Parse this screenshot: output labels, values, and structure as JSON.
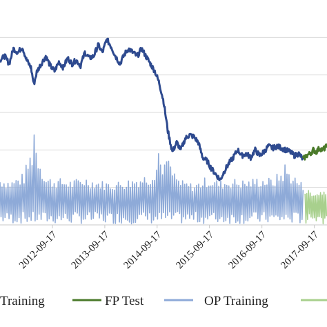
{
  "chart_data": {
    "type": "line",
    "title": "",
    "xlabel": "",
    "ylabel": "",
    "grid": {
      "horizontal": true,
      "vertical": false
    },
    "legend_position": "bottom",
    "x_ticks": [
      "2012-09-17",
      "2013-09-17",
      "2014-09-17",
      "2015-09-17",
      "2016-09-17",
      "2017-09-17"
    ],
    "x_range": [
      "2011-09-17",
      "2017-12-15"
    ],
    "ylim": [
      0,
      6
    ],
    "colors": {
      "fp_training": "#2e4a8f",
      "fp_test": "#4a7a2a",
      "op_training": "#8eaad8",
      "op_test": "#a8d08d"
    },
    "legend": [
      {
        "key": "fp_training",
        "label": "Training"
      },
      {
        "key": "fp_test",
        "label": "FP Test"
      },
      {
        "key": "op_training",
        "label": "OP Training"
      },
      {
        "key": "op_test",
        "label": ""
      }
    ],
    "series": [
      {
        "name": "Training",
        "key": "fp_training",
        "points": [
          [
            "2011-09-17",
            4.4
          ],
          [
            "2011-10-20",
            4.5
          ],
          [
            "2011-11-20",
            4.3
          ],
          [
            "2011-12-20",
            4.7
          ],
          [
            "2012-01-20",
            4.6
          ],
          [
            "2012-02-20",
            4.75
          ],
          [
            "2012-03-20",
            4.4
          ],
          [
            "2012-04-20",
            4.2
          ],
          [
            "2012-05-10",
            3.75
          ],
          [
            "2012-06-01",
            4.1
          ],
          [
            "2012-07-01",
            4.3
          ],
          [
            "2012-08-01",
            4.5
          ],
          [
            "2012-09-01",
            4.25
          ],
          [
            "2012-10-01",
            4.1
          ],
          [
            "2012-11-01",
            4.35
          ],
          [
            "2012-12-01",
            4.2
          ],
          [
            "2013-01-01",
            4.45
          ],
          [
            "2013-02-01",
            4.3
          ],
          [
            "2013-03-01",
            4.4
          ],
          [
            "2013-04-01",
            4.25
          ],
          [
            "2013-05-01",
            4.6
          ],
          [
            "2013-06-01",
            4.45
          ],
          [
            "2013-07-01",
            4.5
          ],
          [
            "2013-08-01",
            4.8
          ],
          [
            "2013-09-01",
            4.6
          ],
          [
            "2013-10-01",
            4.95
          ],
          [
            "2013-11-01",
            4.75
          ],
          [
            "2013-12-01",
            4.5
          ],
          [
            "2014-01-01",
            4.3
          ],
          [
            "2014-02-01",
            4.55
          ],
          [
            "2014-03-01",
            4.7
          ],
          [
            "2014-04-01",
            4.6
          ],
          [
            "2014-05-01",
            4.5
          ],
          [
            "2014-06-01",
            4.7
          ],
          [
            "2014-07-01",
            4.5
          ],
          [
            "2014-08-01",
            4.3
          ],
          [
            "2014-09-01",
            4.1
          ],
          [
            "2014-10-01",
            3.8
          ],
          [
            "2014-11-01",
            3.3
          ],
          [
            "2014-12-01",
            2.5
          ],
          [
            "2015-01-01",
            1.95
          ],
          [
            "2015-02-01",
            2.2
          ],
          [
            "2015-03-01",
            2.0
          ],
          [
            "2015-04-01",
            2.3
          ],
          [
            "2015-05-01",
            2.4
          ],
          [
            "2015-06-01",
            2.35
          ],
          [
            "2015-07-01",
            2.2
          ],
          [
            "2015-08-01",
            1.8
          ],
          [
            "2015-09-01",
            1.7
          ],
          [
            "2015-10-01",
            1.5
          ],
          [
            "2015-11-01",
            1.35
          ],
          [
            "2015-12-01",
            1.2
          ],
          [
            "2016-01-01",
            1.45
          ],
          [
            "2016-02-01",
            1.65
          ],
          [
            "2016-03-01",
            1.8
          ],
          [
            "2016-04-01",
            2.0
          ],
          [
            "2016-05-01",
            1.85
          ],
          [
            "2016-06-01",
            1.9
          ],
          [
            "2016-07-01",
            1.8
          ],
          [
            "2016-08-01",
            2.0
          ],
          [
            "2016-09-01",
            1.85
          ],
          [
            "2016-10-01",
            1.95
          ],
          [
            "2016-11-01",
            2.1
          ],
          [
            "2016-12-01",
            2.05
          ],
          [
            "2017-01-01",
            2.1
          ],
          [
            "2017-02-01",
            2.05
          ],
          [
            "2017-03-01",
            2.0
          ],
          [
            "2017-04-01",
            1.95
          ],
          [
            "2017-05-01",
            1.85
          ],
          [
            "2017-06-01",
            1.9
          ],
          [
            "2017-07-01",
            1.75
          ]
        ]
      },
      {
        "name": "FP Test",
        "key": "fp_test",
        "points": [
          [
            "2017-07-01",
            1.75
          ],
          [
            "2017-07-25",
            1.85
          ],
          [
            "2017-08-20",
            1.9
          ],
          [
            "2017-09-10",
            2.0
          ],
          [
            "2017-10-01",
            1.95
          ],
          [
            "2017-10-25",
            2.05
          ],
          [
            "2017-11-15",
            2.0
          ],
          [
            "2017-12-15",
            2.1
          ]
        ]
      },
      {
        "name": "OP Training",
        "key": "op_training",
        "start": "2011-09-17",
        "end": "2017-07-01",
        "baseline": 0.6,
        "peaks": [
          [
            "2011-09-17",
            1.3
          ],
          [
            "2011-12-01",
            1.2
          ],
          [
            "2012-03-01",
            1.4
          ],
          [
            "2012-05-15",
            2.4
          ],
          [
            "2012-08-01",
            1.3
          ],
          [
            "2012-11-01",
            1.25
          ],
          [
            "2013-02-01",
            1.2
          ],
          [
            "2013-05-01",
            1.3
          ],
          [
            "2013-08-01",
            1.2
          ],
          [
            "2013-11-01",
            1.15
          ],
          [
            "2014-02-01",
            1.2
          ],
          [
            "2014-05-01",
            1.3
          ],
          [
            "2014-08-01",
            1.4
          ],
          [
            "2014-10-01",
            1.9
          ],
          [
            "2014-12-01",
            1.7
          ],
          [
            "2015-03-01",
            1.2
          ],
          [
            "2015-06-01",
            1.1
          ],
          [
            "2015-09-01",
            1.3
          ],
          [
            "2015-12-01",
            1.2
          ],
          [
            "2016-03-01",
            1.25
          ],
          [
            "2016-06-01",
            1.2
          ],
          [
            "2016-09-01",
            1.3
          ],
          [
            "2016-12-01",
            1.25
          ],
          [
            "2017-03-01",
            1.6
          ],
          [
            "2017-07-01",
            1.1
          ]
        ]
      },
      {
        "name": "",
        "key": "op_test",
        "start": "2017-07-15",
        "end": "2017-12-15",
        "baseline": 0.6,
        "peaks": [
          [
            "2017-07-15",
            0.95
          ],
          [
            "2017-10-01",
            0.85
          ],
          [
            "2017-12-15",
            1.0
          ]
        ]
      }
    ]
  }
}
